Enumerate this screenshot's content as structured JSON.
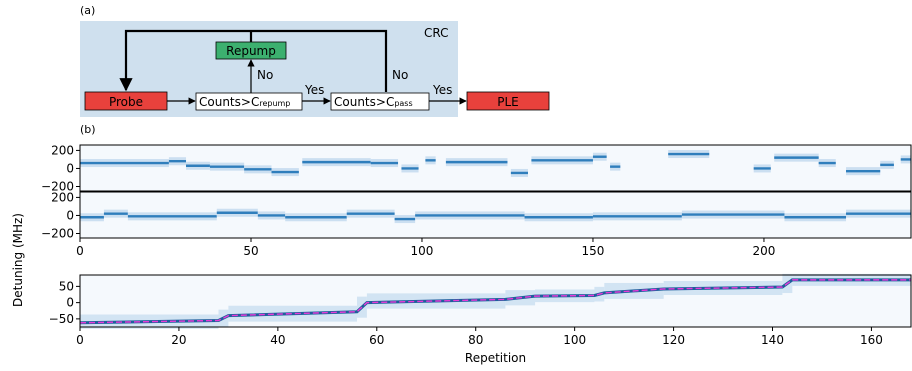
{
  "panel_labels": {
    "a": "(a)",
    "b": "(b)"
  },
  "flow": {
    "region_label": "CRC",
    "probe": "Probe",
    "repump": "Repump",
    "cond1": "Counts>C",
    "cond1_sub": "repump",
    "cond2": "Counts>C",
    "cond2_sub": "pass",
    "ple": "PLE",
    "yes1": "Yes",
    "yes2": "Yes",
    "no1": "No",
    "no2": "No",
    "colors": {
      "region": "#cfe0ee",
      "probe": "#e8413c",
      "repump": "#3cb06f",
      "ple": "#e8413c",
      "box": "#ffffff"
    }
  },
  "shared_ylabel": "Detuning (MHz)",
  "chart_data": [
    {
      "type": "heatmap",
      "name": "top-row-1",
      "x_range": [
        0,
        243
      ],
      "ylim": [
        -250,
        260
      ],
      "yticks": [
        200,
        0,
        -200
      ],
      "ytick_labels": [
        "200",
        "0",
        "−200"
      ],
      "segments": [
        {
          "x0": 0,
          "x1": 26,
          "y": 60
        },
        {
          "x0": 26,
          "x1": 31,
          "y": 80
        },
        {
          "x0": 31,
          "x1": 38,
          "y": 30
        },
        {
          "x0": 38,
          "x1": 48,
          "y": 20
        },
        {
          "x0": 48,
          "x1": 56,
          "y": -10
        },
        {
          "x0": 56,
          "x1": 64,
          "y": -40
        },
        {
          "x0": 65,
          "x1": 85,
          "y": 70
        },
        {
          "x0": 85,
          "x1": 93,
          "y": 60
        },
        {
          "x0": 94,
          "x1": 99,
          "y": 0
        },
        {
          "x0": 101,
          "x1": 104,
          "y": 90
        },
        {
          "x0": 107,
          "x1": 125,
          "y": 70
        },
        {
          "x0": 126,
          "x1": 131,
          "y": -50
        },
        {
          "x0": 132,
          "x1": 150,
          "y": 90
        },
        {
          "x0": 150,
          "x1": 154,
          "y": 130
        },
        {
          "x0": 155,
          "x1": 158,
          "y": 20
        },
        {
          "x0": 172,
          "x1": 184,
          "y": 160
        },
        {
          "x0": 197,
          "x1": 202,
          "y": 0
        },
        {
          "x0": 203,
          "x1": 216,
          "y": 120
        },
        {
          "x0": 216,
          "x1": 221,
          "y": 60
        },
        {
          "x0": 224,
          "x1": 234,
          "y": -30
        },
        {
          "x0": 234,
          "x1": 238,
          "y": 40
        },
        {
          "x0": 240,
          "x1": 243,
          "y": 100
        }
      ]
    },
    {
      "type": "heatmap",
      "name": "top-row-2",
      "x_range": [
        0,
        243
      ],
      "ylim": [
        -250,
        260
      ],
      "yticks": [
        200,
        0,
        -200
      ],
      "ytick_labels": [
        "200",
        "0",
        "−200"
      ],
      "xticks": [
        0,
        50,
        100,
        150,
        200
      ],
      "segments": [
        {
          "x0": 0,
          "x1": 7,
          "y": -20
        },
        {
          "x0": 7,
          "x1": 14,
          "y": 20
        },
        {
          "x0": 14,
          "x1": 40,
          "y": -10
        },
        {
          "x0": 40,
          "x1": 52,
          "y": 30
        },
        {
          "x0": 52,
          "x1": 60,
          "y": 0
        },
        {
          "x0": 60,
          "x1": 78,
          "y": -20
        },
        {
          "x0": 78,
          "x1": 92,
          "y": 20
        },
        {
          "x0": 92,
          "x1": 98,
          "y": -40
        },
        {
          "x0": 98,
          "x1": 130,
          "y": 0
        },
        {
          "x0": 130,
          "x1": 150,
          "y": -20
        },
        {
          "x0": 150,
          "x1": 176,
          "y": -10
        },
        {
          "x0": 176,
          "x1": 206,
          "y": 10
        },
        {
          "x0": 206,
          "x1": 224,
          "y": -20
        },
        {
          "x0": 224,
          "x1": 243,
          "y": 20
        }
      ]
    },
    {
      "type": "heatmap",
      "name": "bottom",
      "x_range": [
        0,
        168
      ],
      "ylim": [
        -75,
        85
      ],
      "yticks": [
        50,
        0,
        -50
      ],
      "ytick_labels": [
        "50",
        "0",
        "−50"
      ],
      "xticks": [
        0,
        20,
        40,
        60,
        80,
        100,
        120,
        140,
        160
      ],
      "xlabel": "Repetition",
      "trend": [
        [
          0,
          -62
        ],
        [
          28,
          -55
        ],
        [
          30,
          -40
        ],
        [
          56,
          -28
        ],
        [
          58,
          0
        ],
        [
          86,
          10
        ],
        [
          92,
          20
        ],
        [
          104,
          22
        ],
        [
          106,
          30
        ],
        [
          118,
          42
        ],
        [
          142,
          48
        ],
        [
          144,
          70
        ],
        [
          168,
          70
        ]
      ]
    }
  ]
}
